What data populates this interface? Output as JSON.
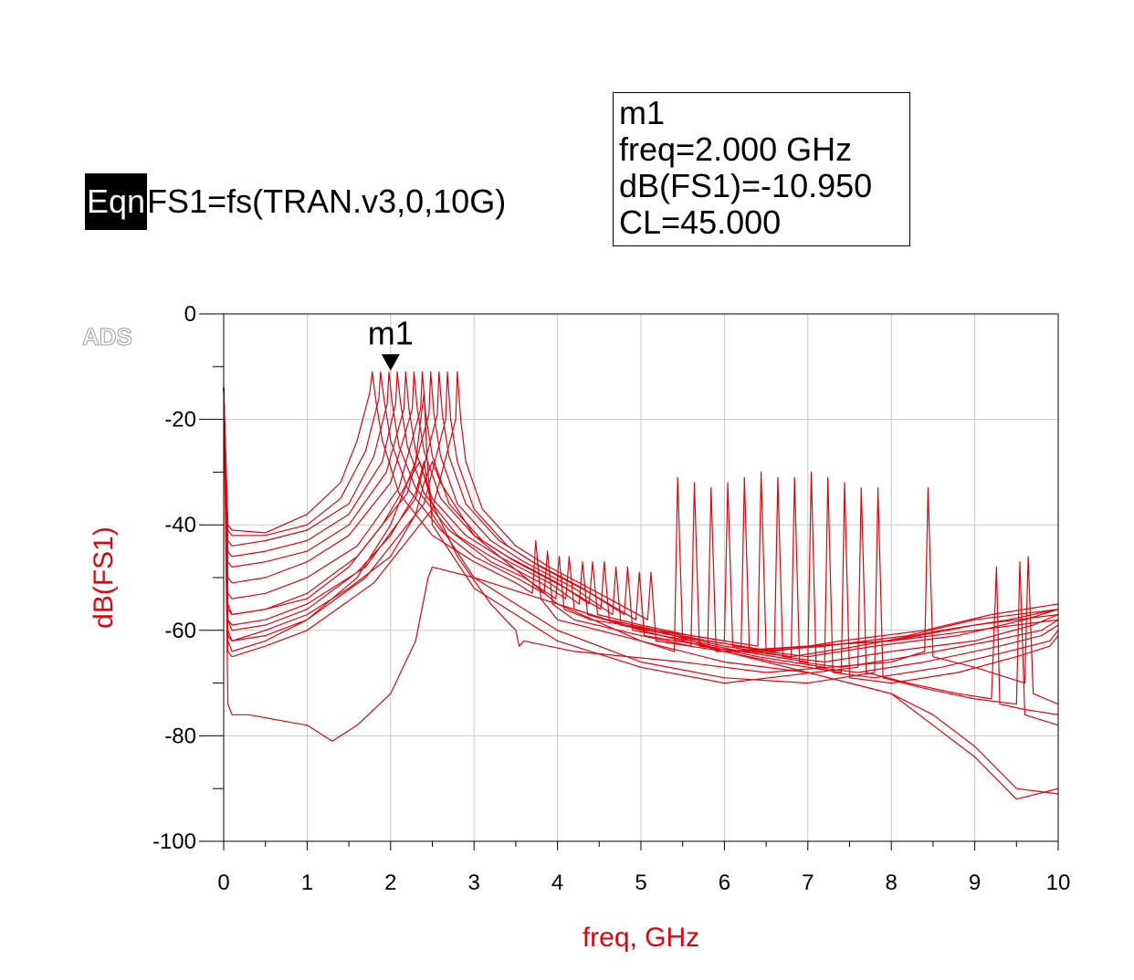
{
  "equation": {
    "tag": "Eqn",
    "text": "FS1=fs(TRAN.v3,0,10G)"
  },
  "marker_readout": {
    "name": "m1",
    "lines": [
      "m1",
      "freq=2.000 GHz",
      "dB(FS1)=-10.950",
      "CL=45.000"
    ]
  },
  "watermark": "ADS",
  "colors": {
    "trace": "#e8000b",
    "axis_label": "#e8000b",
    "grid": "#c8c8c8",
    "axis": "#000000"
  },
  "chart_data": {
    "type": "line",
    "xlabel": "freq, GHz",
    "ylabel": "dB(FS1)",
    "xlim": [
      0,
      10
    ],
    "ylim": [
      -100,
      0
    ],
    "x_ticks": [
      0,
      1,
      2,
      3,
      4,
      5,
      6,
      7,
      8,
      9,
      10
    ],
    "y_ticks": [
      0,
      -20,
      -40,
      -60,
      -80,
      -100
    ],
    "grid": true,
    "marker": {
      "label": "m1",
      "x": 2.0,
      "y": -10.95
    },
    "series": [
      {
        "x": [
          0,
          0.05,
          0.1,
          0.5,
          1.0,
          1.4,
          1.6,
          1.75,
          1.78,
          1.82,
          1.9,
          2.1,
          2.5,
          3,
          3.5,
          3.7,
          3.74,
          3.8,
          4,
          5,
          5.4,
          5.44,
          5.5,
          6,
          7,
          8,
          9,
          10
        ],
        "y": [
          -14,
          -40,
          -41,
          -41.5,
          -38,
          -32,
          -24,
          -15,
          -11,
          -16,
          -24,
          -34,
          -42,
          -47,
          -51,
          -53,
          -43,
          -54,
          -58,
          -62,
          -64,
          -31,
          -62,
          -64,
          -63,
          -62,
          -60,
          -58
        ]
      },
      {
        "x": [
          0,
          0.05,
          0.1,
          0.5,
          1.0,
          1.4,
          1.7,
          1.86,
          1.88,
          1.92,
          2.0,
          2.2,
          2.6,
          3,
          3.5,
          3.84,
          3.88,
          3.94,
          4.2,
          5,
          5.6,
          5.64,
          5.7,
          6.2,
          7,
          8,
          9,
          10
        ],
        "y": [
          -14,
          -41,
          -42,
          -42,
          -40,
          -35,
          -26,
          -16,
          -11,
          -16,
          -24,
          -33,
          -41,
          -46,
          -50,
          -53,
          -45,
          -55,
          -58,
          -61,
          -63,
          -32,
          -63,
          -64,
          -63,
          -62,
          -59,
          -57
        ]
      },
      {
        "x": [
          0,
          0.05,
          0.1,
          0.5,
          1.0,
          1.5,
          1.8,
          1.96,
          1.98,
          2.02,
          2.1,
          2.3,
          2.7,
          3.2,
          3.6,
          3.98,
          4.02,
          4.08,
          4.4,
          5.2,
          5.8,
          5.84,
          5.9,
          6.4,
          7.2,
          8.2,
          9,
          10
        ],
        "y": [
          -14,
          -43,
          -44,
          -43,
          -41,
          -36,
          -27,
          -17,
          -11,
          -17,
          -25,
          -33,
          -41,
          -47,
          -50,
          -54,
          -46,
          -56,
          -58,
          -60,
          -63,
          -33,
          -64,
          -64,
          -63,
          -61,
          -58,
          -56
        ]
      },
      {
        "x": [
          0,
          0.05,
          0.1,
          0.5,
          1.0,
          1.5,
          1.9,
          2.06,
          2.08,
          2.12,
          2.2,
          2.4,
          2.8,
          3.2,
          3.8,
          4.1,
          4.14,
          4.2,
          4.6,
          5.2,
          6.0,
          6.04,
          6.1,
          6.6,
          7.4,
          8.4,
          9.2,
          10
        ],
        "y": [
          -14,
          -45,
          -46,
          -45,
          -43,
          -38,
          -28,
          -17,
          -11,
          -17,
          -25,
          -34,
          -42,
          -46,
          -51,
          -54,
          -46,
          -56,
          -58,
          -60,
          -62,
          -32,
          -63,
          -64,
          -62,
          -60,
          -57,
          -55
        ]
      },
      {
        "x": [
          0,
          0.05,
          0.1,
          0.5,
          1.0,
          1.5,
          1.95,
          2.16,
          2.18,
          2.22,
          2.3,
          2.5,
          2.9,
          3.3,
          3.9,
          4.26,
          4.3,
          4.36,
          4.8,
          5.4,
          6.2,
          6.24,
          6.3,
          6.8,
          7.6,
          8.6,
          9.4,
          10
        ],
        "y": [
          -14,
          -47,
          -48,
          -47,
          -45,
          -40,
          -30,
          -18,
          -11,
          -18,
          -26,
          -35,
          -42,
          -46,
          -51,
          -55,
          -47,
          -57,
          -59,
          -61,
          -63,
          -31,
          -64,
          -65,
          -63,
          -60,
          -58,
          -56
        ]
      },
      {
        "x": [
          0,
          0.05,
          0.1,
          0.5,
          1.0,
          1.5,
          2.0,
          2.26,
          2.28,
          2.32,
          2.4,
          2.6,
          3.0,
          3.4,
          4.0,
          4.38,
          4.42,
          4.48,
          5.0,
          5.6,
          6.4,
          6.44,
          6.5,
          7.0,
          7.8,
          8.8,
          9.6,
          10
        ],
        "y": [
          -14,
          -50,
          -51,
          -50,
          -47,
          -42,
          -32,
          -18,
          -11,
          -18,
          -26,
          -35,
          -42,
          -46,
          -51,
          -55,
          -47,
          -57,
          -59,
          -61,
          -63,
          -30,
          -64,
          -65,
          -63,
          -61,
          -58,
          -56
        ]
      },
      {
        "x": [
          0,
          0.05,
          0.1,
          0.5,
          1.0,
          1.6,
          2.1,
          2.36,
          2.38,
          2.42,
          2.5,
          2.7,
          3.1,
          3.5,
          4.1,
          4.52,
          4.56,
          4.62,
          5.2,
          5.8,
          6.6,
          6.64,
          6.7,
          7.2,
          8.0,
          9.0,
          9.7,
          10
        ],
        "y": [
          -14,
          -53,
          -54,
          -53,
          -50,
          -44,
          -33,
          -18,
          -11,
          -19,
          -27,
          -36,
          -43,
          -47,
          -52,
          -56,
          -47,
          -58,
          -60,
          -62,
          -64,
          -31,
          -65,
          -66,
          -64,
          -62,
          -59,
          -57
        ]
      },
      {
        "x": [
          0,
          0.05,
          0.1,
          0.5,
          1.0,
          1.6,
          2.2,
          2.46,
          2.48,
          2.52,
          2.6,
          2.8,
          3.2,
          3.6,
          4.2,
          4.66,
          4.7,
          4.76,
          5.4,
          6.0,
          6.8,
          6.84,
          6.9,
          7.4,
          8.2,
          9.2,
          9.8,
          10
        ],
        "y": [
          -14,
          -56,
          -57,
          -56,
          -53,
          -46,
          -34,
          -19,
          -11,
          -19,
          -27,
          -36,
          -43,
          -47,
          -52,
          -57,
          -48,
          -59,
          -61,
          -63,
          -65,
          -31,
          -66,
          -67,
          -65,
          -62,
          -60,
          -58
        ]
      },
      {
        "x": [
          0,
          0.05,
          0.1,
          0.5,
          1.0,
          1.7,
          2.3,
          2.56,
          2.58,
          2.62,
          2.7,
          2.9,
          3.3,
          3.7,
          4.3,
          4.8,
          4.84,
          4.9,
          5.6,
          6.2,
          7.0,
          7.04,
          7.1,
          7.6,
          8.4,
          9.3,
          9.8,
          10
        ],
        "y": [
          -14,
          -58,
          -59,
          -58,
          -55,
          -48,
          -35,
          -19,
          -11,
          -19,
          -27,
          -36,
          -43,
          -47,
          -52,
          -57,
          -48,
          -60,
          -62,
          -64,
          -66,
          -30,
          -67,
          -68,
          -66,
          -63,
          -61,
          -59
        ]
      },
      {
        "x": [
          0,
          0.05,
          0.1,
          0.5,
          1.0,
          1.7,
          2.4,
          2.66,
          2.68,
          2.72,
          2.8,
          3.0,
          3.4,
          3.8,
          4.4,
          4.94,
          4.98,
          5.04,
          5.8,
          6.4,
          7.2,
          7.24,
          7.3,
          7.8,
          8.6,
          9.4,
          9.9,
          10
        ],
        "y": [
          -14,
          -61,
          -62,
          -61,
          -58,
          -50,
          -36,
          -20,
          -11,
          -20,
          -28,
          -37,
          -44,
          -48,
          -53,
          -58,
          -49,
          -61,
          -63,
          -65,
          -67,
          -31,
          -68,
          -69,
          -67,
          -64,
          -62,
          -60
        ]
      },
      {
        "x": [
          0,
          0.05,
          0.1,
          0.5,
          1.0,
          1.8,
          2.5,
          2.78,
          2.8,
          2.84,
          2.9,
          3.1,
          3.5,
          3.9,
          4.5,
          5.08,
          5.12,
          5.18,
          6.0,
          6.6,
          7.4,
          7.44,
          7.5,
          8.0,
          8.8,
          9.5,
          9.9,
          10
        ],
        "y": [
          -14,
          -64,
          -65,
          -63,
          -60,
          -51,
          -37,
          -20,
          -11,
          -20,
          -28,
          -37,
          -44,
          -48,
          -53,
          -58,
          -49,
          -62,
          -64,
          -66,
          -68,
          -32,
          -69,
          -70,
          -68,
          -65,
          -63,
          -61
        ]
      },
      {
        "x": [
          0,
          0.05,
          0.1,
          0.5,
          1.0,
          1.6,
          2.0,
          2.3,
          2.4,
          2.44,
          2.5,
          3.0,
          4.0,
          5.0,
          6.0,
          7.6,
          7.64,
          7.7,
          8.2,
          8.8,
          9.2,
          9.26,
          9.3,
          9.6,
          10
        ],
        "y": [
          -14,
          -62,
          -64,
          -62,
          -58,
          -50,
          -40,
          -28,
          -15,
          -28,
          -40,
          -52,
          -62,
          -67,
          -70,
          -67,
          -33,
          -68,
          -70,
          -72,
          -73,
          -48,
          -74,
          -75,
          -76
        ]
      },
      {
        "x": [
          0,
          0.05,
          0.1,
          0.5,
          1.0,
          1.6,
          2.0,
          2.3,
          2.4,
          2.5,
          3.0,
          4.0,
          5.0,
          6.0,
          7.0,
          7.8,
          7.84,
          7.9,
          8.4,
          9.0,
          9.5,
          9.54,
          9.6,
          10
        ],
        "y": [
          -14,
          -58,
          -60,
          -59,
          -56,
          -49,
          -42,
          -34,
          -28,
          -38,
          -50,
          -60,
          -66,
          -69,
          -70,
          -68,
          -33,
          -69,
          -71,
          -73,
          -74,
          -47,
          -76,
          -78
        ]
      },
      {
        "x": [
          0,
          0.05,
          0.1,
          0.5,
          1.0,
          1.5,
          1.9,
          2.2,
          2.35,
          2.5,
          2.8,
          3.2,
          3.5,
          3.54,
          3.6,
          4.2,
          5.5,
          6.5,
          8.0,
          8.4,
          8.44,
          8.5,
          9.0,
          9.6,
          9.64,
          9.7,
          10
        ],
        "y": [
          -14,
          -55,
          -57,
          -56,
          -54,
          -48,
          -40,
          -32,
          -28,
          -36,
          -46,
          -55,
          -60,
          -63,
          -62,
          -64,
          -66,
          -68,
          -66,
          -64,
          -33,
          -65,
          -67,
          -70,
          -46,
          -72,
          -74
        ]
      },
      {
        "x": [
          0,
          0.05,
          0.1,
          0.3,
          1.0,
          1.3,
          1.6,
          2.0,
          2.3,
          2.45,
          2.5,
          3.0,
          4.0,
          5.0,
          6.0,
          7.0,
          8.0,
          8.5,
          9.0,
          9.5,
          10
        ],
        "y": [
          -14,
          -74,
          -76,
          -76,
          -78,
          -81,
          -78,
          -72,
          -62,
          -50,
          -48,
          -50,
          -55,
          -60,
          -64,
          -68,
          -72,
          -78,
          -84,
          -92,
          -90
        ]
      },
      {
        "x": [
          0,
          0.05,
          0.1,
          0.5,
          1.0,
          1.5,
          2.0,
          2.3,
          2.4,
          2.5,
          2.6,
          3.0,
          4.0,
          5.0,
          6.0,
          7.0,
          7.5,
          8.0,
          8.5,
          9.0,
          9.5,
          10
        ],
        "y": [
          -14,
          -60,
          -62,
          -60,
          -57,
          -52,
          -46,
          -38,
          -32,
          -28,
          -32,
          -42,
          -55,
          -62,
          -66,
          -68,
          -70,
          -72,
          -76,
          -82,
          -90,
          -91
        ]
      }
    ]
  }
}
